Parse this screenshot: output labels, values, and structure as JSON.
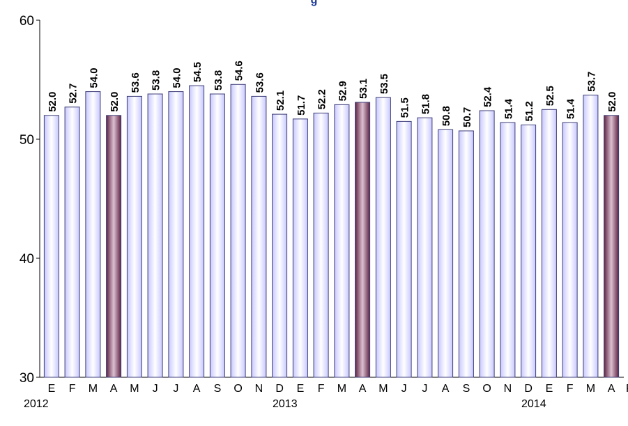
{
  "chart_data": {
    "type": "bar",
    "title": "g",
    "xlabel": "",
    "ylabel": "",
    "ylim": [
      30,
      60
    ],
    "yticks": [
      30,
      40,
      50,
      60
    ],
    "grid": false,
    "categories": [
      "E",
      "F",
      "M",
      "A",
      "M",
      "J",
      "J",
      "A",
      "S",
      "O",
      "N",
      "D",
      "E",
      "F",
      "M",
      "A",
      "M",
      "J",
      "J",
      "A",
      "S",
      "O",
      "N",
      "D",
      "E",
      "F",
      "M",
      "A"
    ],
    "year_labels": [
      {
        "label": "2012",
        "index": 0
      },
      {
        "label": "2013",
        "index": 12
      },
      {
        "label": "2014",
        "index": 24
      }
    ],
    "trailing_tick_label": "P",
    "series": [
      {
        "values": [
          52.0,
          52.7,
          54.0,
          52.0,
          53.6,
          53.8,
          54.0,
          54.5,
          53.8,
          54.6,
          53.6,
          52.1,
          51.7,
          52.2,
          52.9,
          53.1,
          53.5,
          51.5,
          51.8,
          50.8,
          50.7,
          52.4,
          51.4,
          51.2,
          52.5,
          51.4,
          53.7,
          52.0
        ],
        "data_labels": [
          "52.0",
          "52.7",
          "54.0",
          "52.0",
          "53.6",
          "53.8",
          "54.0",
          "54.5",
          "53.8",
          "54.6",
          "53.6",
          "52.1",
          "51.7",
          "52.2",
          "52.9",
          "53.1",
          "53.5",
          "51.5",
          "51.8",
          "50.8",
          "50.7",
          "52.4",
          "51.4",
          "51.2",
          "52.5",
          "51.4",
          "53.7",
          "52.0"
        ],
        "highlighted_indices": [
          3,
          15,
          27
        ]
      }
    ],
    "colors": {
      "bar_light": "#cfd0ff",
      "bar_edge": "#3c3c78",
      "highlight_dark": "#6b2e4e",
      "highlight_light": "#d9b8cc",
      "axis": "#000000",
      "title": "#1f3c99"
    }
  }
}
